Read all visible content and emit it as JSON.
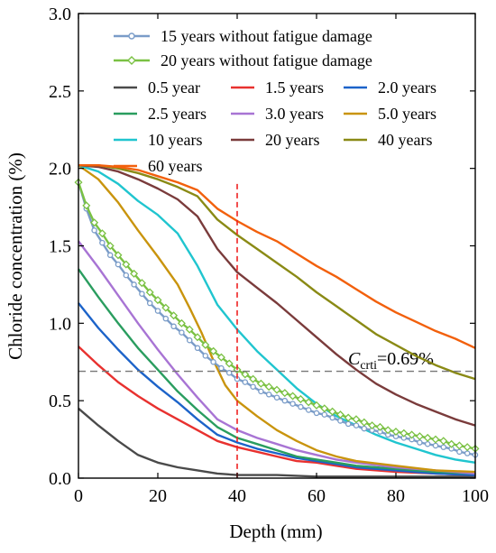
{
  "chart_data": {
    "type": "line",
    "title": "",
    "xlabel": "Depth (mm)",
    "ylabel": "Chloride concentration (%)",
    "xlim": [
      0,
      100
    ],
    "ylim": [
      0,
      3.0
    ],
    "x_ticks": [
      "0",
      "20",
      "40",
      "60",
      "80",
      "100"
    ],
    "y_ticks": [
      "0.0",
      "0.5",
      "1.0",
      "1.5",
      "2.0",
      "2.5",
      "3.0"
    ],
    "grid": false,
    "legend_position": "top",
    "annotation": {
      "symbol": "C",
      "subscript": "crti",
      "text": "=0.69%",
      "threshold_value": 0.69,
      "vertical_marker_depth": 40
    },
    "series": [
      {
        "name": "15 years without fatigue damage",
        "color": "#7a9cc8",
        "marker": "circle",
        "x": [
          0,
          2,
          4,
          6,
          8,
          10,
          12,
          14,
          16,
          18,
          20,
          22,
          24,
          26,
          28,
          30,
          32,
          34,
          36,
          38,
          40,
          42,
          44,
          46,
          48,
          50,
          52,
          54,
          56,
          58,
          60,
          62,
          64,
          66,
          68,
          70,
          72,
          74,
          76,
          78,
          80,
          82,
          84,
          86,
          88,
          90,
          92,
          94,
          96,
          98,
          100
        ],
        "y": [
          1.91,
          1.74,
          1.6,
          1.52,
          1.44,
          1.38,
          1.31,
          1.25,
          1.19,
          1.13,
          1.08,
          1.03,
          0.98,
          0.94,
          0.89,
          0.84,
          0.79,
          0.75,
          0.71,
          0.68,
          0.64,
          0.62,
          0.59,
          0.56,
          0.54,
          0.52,
          0.5,
          0.48,
          0.46,
          0.44,
          0.42,
          0.41,
          0.39,
          0.37,
          0.35,
          0.34,
          0.32,
          0.31,
          0.3,
          0.28,
          0.27,
          0.26,
          0.25,
          0.23,
          0.22,
          0.21,
          0.2,
          0.19,
          0.17,
          0.16,
          0.15
        ]
      },
      {
        "name": "20 years without fatigue damage",
        "color": "#7ac143",
        "marker": "diamond",
        "x": [
          0,
          2,
          4,
          6,
          8,
          10,
          12,
          14,
          16,
          18,
          20,
          22,
          24,
          26,
          28,
          30,
          32,
          34,
          36,
          38,
          40,
          42,
          44,
          46,
          48,
          50,
          52,
          54,
          56,
          58,
          60,
          62,
          64,
          66,
          68,
          70,
          72,
          74,
          76,
          78,
          80,
          82,
          84,
          86,
          88,
          90,
          92,
          94,
          96,
          98,
          100
        ],
        "y": [
          1.91,
          1.76,
          1.65,
          1.58,
          1.5,
          1.44,
          1.38,
          1.32,
          1.26,
          1.2,
          1.15,
          1.1,
          1.05,
          1.0,
          0.96,
          0.91,
          0.86,
          0.82,
          0.78,
          0.74,
          0.7,
          0.67,
          0.64,
          0.61,
          0.59,
          0.57,
          0.55,
          0.53,
          0.51,
          0.49,
          0.47,
          0.45,
          0.43,
          0.41,
          0.39,
          0.38,
          0.36,
          0.34,
          0.33,
          0.31,
          0.3,
          0.29,
          0.28,
          0.27,
          0.26,
          0.25,
          0.24,
          0.22,
          0.21,
          0.2,
          0.19
        ]
      },
      {
        "name": "0.5 year",
        "color": "#4a4a4a",
        "x": [
          0,
          5,
          10,
          15,
          20,
          25,
          30,
          35,
          40,
          50,
          60,
          80,
          100
        ],
        "y": [
          0.45,
          0.34,
          0.24,
          0.15,
          0.1,
          0.07,
          0.05,
          0.03,
          0.02,
          0.02,
          0.01,
          0.01,
          0.01
        ]
      },
      {
        "name": "1.5 years",
        "color": "#e8312f",
        "x": [
          0,
          5,
          10,
          15,
          20,
          25,
          30,
          35,
          40,
          45,
          50,
          55,
          60,
          65,
          70,
          80,
          90,
          100
        ],
        "y": [
          0.85,
          0.73,
          0.62,
          0.53,
          0.45,
          0.38,
          0.31,
          0.24,
          0.2,
          0.17,
          0.14,
          0.11,
          0.1,
          0.08,
          0.06,
          0.04,
          0.03,
          0.02
        ]
      },
      {
        "name": "2.0 years",
        "color": "#1c63c9",
        "x": [
          0,
          5,
          10,
          15,
          20,
          25,
          30,
          35,
          40,
          45,
          50,
          55,
          60,
          65,
          70,
          80,
          90,
          100
        ],
        "y": [
          1.13,
          0.97,
          0.83,
          0.7,
          0.59,
          0.49,
          0.38,
          0.28,
          0.23,
          0.19,
          0.16,
          0.13,
          0.11,
          0.09,
          0.07,
          0.05,
          0.03,
          0.02
        ]
      },
      {
        "name": "2.5 years",
        "color": "#2a9d5f",
        "x": [
          0,
          5,
          10,
          15,
          20,
          25,
          30,
          35,
          40,
          45,
          50,
          55,
          60,
          65,
          70,
          80,
          90,
          100
        ],
        "y": [
          1.35,
          1.17,
          1.0,
          0.84,
          0.7,
          0.56,
          0.44,
          0.33,
          0.26,
          0.22,
          0.18,
          0.14,
          0.12,
          0.1,
          0.08,
          0.06,
          0.04,
          0.03
        ]
      },
      {
        "name": "3.0 years",
        "color": "#a874d4",
        "x": [
          0,
          5,
          10,
          15,
          20,
          25,
          30,
          35,
          40,
          45,
          50,
          55,
          60,
          65,
          70,
          80,
          90,
          100
        ],
        "y": [
          1.53,
          1.36,
          1.18,
          1.0,
          0.83,
          0.67,
          0.52,
          0.38,
          0.31,
          0.26,
          0.22,
          0.18,
          0.15,
          0.12,
          0.1,
          0.07,
          0.05,
          0.03
        ]
      },
      {
        "name": "5.0 years",
        "color": "#c9940d",
        "x": [
          0,
          5,
          10,
          15,
          20,
          25,
          28,
          31,
          34,
          37,
          40,
          45,
          50,
          55,
          60,
          65,
          70,
          80,
          90,
          100
        ],
        "y": [
          2.02,
          1.93,
          1.78,
          1.6,
          1.43,
          1.25,
          1.1,
          0.94,
          0.76,
          0.6,
          0.5,
          0.4,
          0.31,
          0.24,
          0.18,
          0.14,
          0.11,
          0.08,
          0.05,
          0.04
        ]
      },
      {
        "name": "10 years",
        "color": "#20c5cf",
        "x": [
          0,
          5,
          10,
          15,
          20,
          25,
          30,
          35,
          40,
          45,
          50,
          55,
          60,
          65,
          70,
          75,
          80,
          85,
          90,
          95,
          100
        ],
        "y": [
          2.02,
          1.98,
          1.9,
          1.79,
          1.7,
          1.58,
          1.37,
          1.12,
          0.96,
          0.82,
          0.7,
          0.58,
          0.48,
          0.4,
          0.34,
          0.28,
          0.23,
          0.19,
          0.15,
          0.12,
          0.1
        ]
      },
      {
        "name": "20 years",
        "color": "#7a3b3b",
        "x": [
          0,
          5,
          10,
          15,
          20,
          25,
          30,
          35,
          40,
          45,
          50,
          55,
          60,
          65,
          70,
          75,
          80,
          85,
          90,
          95,
          100
        ],
        "y": [
          2.02,
          2.01,
          1.98,
          1.93,
          1.87,
          1.8,
          1.69,
          1.48,
          1.33,
          1.23,
          1.13,
          1.02,
          0.91,
          0.8,
          0.7,
          0.61,
          0.54,
          0.48,
          0.43,
          0.38,
          0.34
        ]
      },
      {
        "name": "40 years",
        "color": "#8a8a15",
        "x": [
          0,
          5,
          10,
          15,
          20,
          25,
          30,
          35,
          40,
          45,
          50,
          55,
          60,
          65,
          70,
          75,
          80,
          85,
          90,
          95,
          100
        ],
        "y": [
          2.02,
          2.02,
          2.0,
          1.97,
          1.93,
          1.88,
          1.82,
          1.67,
          1.57,
          1.48,
          1.39,
          1.3,
          1.2,
          1.11,
          1.02,
          0.93,
          0.86,
          0.79,
          0.73,
          0.68,
          0.64
        ]
      },
      {
        "name": "60 years",
        "color": "#f2600c",
        "x": [
          0,
          5,
          10,
          15,
          20,
          25,
          30,
          35,
          40,
          45,
          50,
          55,
          60,
          65,
          70,
          75,
          80,
          85,
          90,
          95,
          100
        ],
        "y": [
          2.02,
          2.02,
          2.01,
          1.99,
          1.95,
          1.91,
          1.86,
          1.74,
          1.66,
          1.59,
          1.53,
          1.45,
          1.37,
          1.3,
          1.22,
          1.14,
          1.07,
          1.01,
          0.95,
          0.9,
          0.84
        ]
      }
    ]
  }
}
